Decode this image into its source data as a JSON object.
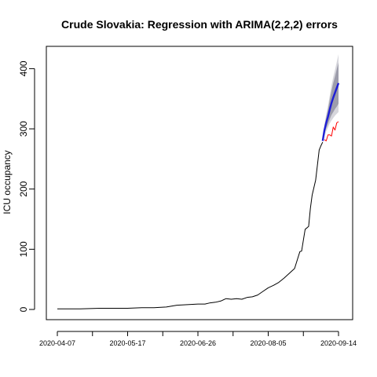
{
  "chart_data": {
    "type": "line",
    "title": "Crude Slovakia: Regression with ARIMA(2,2,2) errors",
    "xlabel": "",
    "ylabel": "ICU occupancy",
    "x_ticks": [
      "2020-04-07",
      "2020-05-17",
      "2020-06-26",
      "2020-08-05",
      "2020-09-14"
    ],
    "y_ticks": [
      0,
      100,
      200,
      300,
      400
    ],
    "xlim": [
      "2020-04-07",
      "2020-09-14"
    ],
    "ylim": [
      0,
      400
    ],
    "grid": false,
    "legend": "none",
    "series": [
      {
        "role": "observed",
        "color": "#000000",
        "points": [
          [
            "2020-04-07",
            1
          ],
          [
            "2020-04-20",
            1
          ],
          [
            "2020-05-01",
            2
          ],
          [
            "2020-05-10",
            2
          ],
          [
            "2020-05-17",
            2
          ],
          [
            "2020-05-25",
            3
          ],
          [
            "2020-06-01",
            3
          ],
          [
            "2020-06-08",
            4
          ],
          [
            "2020-06-14",
            7
          ],
          [
            "2020-06-20",
            8
          ],
          [
            "2020-06-26",
            9
          ],
          [
            "2020-06-30",
            9
          ],
          [
            "2020-07-03",
            11
          ],
          [
            "2020-07-06",
            12
          ],
          [
            "2020-07-09",
            14
          ],
          [
            "2020-07-12",
            18
          ],
          [
            "2020-07-15",
            17
          ],
          [
            "2020-07-18",
            18
          ],
          [
            "2020-07-21",
            17
          ],
          [
            "2020-07-24",
            20
          ],
          [
            "2020-07-27",
            21
          ],
          [
            "2020-07-30",
            24
          ],
          [
            "2020-08-02",
            30
          ],
          [
            "2020-08-05",
            36
          ],
          [
            "2020-08-08",
            40
          ],
          [
            "2020-08-11",
            45
          ],
          [
            "2020-08-14",
            52
          ],
          [
            "2020-08-17",
            60
          ],
          [
            "2020-08-20",
            68
          ],
          [
            "2020-08-23",
            96
          ],
          [
            "2020-08-24",
            97
          ],
          [
            "2020-08-26",
            133
          ],
          [
            "2020-08-28",
            138
          ],
          [
            "2020-08-29",
            168
          ],
          [
            "2020-08-30",
            190
          ],
          [
            "2020-09-01",
            215
          ],
          [
            "2020-09-02",
            240
          ],
          [
            "2020-09-03",
            265
          ],
          [
            "2020-09-04",
            272
          ],
          [
            "2020-09-05",
            278
          ]
        ]
      },
      {
        "role": "forecast",
        "color": "#1f1fd6",
        "points": [
          [
            "2020-09-05",
            280
          ],
          [
            "2020-09-06",
            298
          ],
          [
            "2020-09-07",
            310
          ],
          [
            "2020-09-08",
            320
          ],
          [
            "2020-09-09",
            332
          ],
          [
            "2020-09-10",
            343
          ],
          [
            "2020-09-11",
            352
          ],
          [
            "2020-09-12",
            360
          ],
          [
            "2020-09-13",
            368
          ],
          [
            "2020-09-14",
            376
          ]
        ],
        "interval_80": [
          [
            280,
            280
          ],
          [
            292,
            304
          ],
          [
            301,
            319
          ],
          [
            308,
            332
          ],
          [
            316,
            348
          ],
          [
            323,
            363
          ],
          [
            328,
            376
          ],
          [
            333,
            387
          ],
          [
            337,
            399
          ],
          [
            342,
            410
          ]
        ],
        "interval_95": [
          [
            280,
            280
          ],
          [
            288,
            308
          ],
          [
            296,
            324
          ],
          [
            302,
            338
          ],
          [
            309,
            355
          ],
          [
            314,
            372
          ],
          [
            318,
            386
          ],
          [
            322,
            398
          ],
          [
            325,
            411
          ],
          [
            328,
            424
          ]
        ],
        "band_colors": [
          "#d6d6dc",
          "#9d9dab"
        ]
      },
      {
        "role": "actual",
        "color": "#ff0000",
        "points": [
          [
            "2020-09-06",
            282
          ],
          [
            "2020-09-07",
            280
          ],
          [
            "2020-09-08",
            290
          ],
          [
            "2020-09-09",
            290
          ],
          [
            "2020-09-10",
            288
          ],
          [
            "2020-09-11",
            303
          ],
          [
            "2020-09-12",
            298
          ],
          [
            "2020-09-13",
            310
          ],
          [
            "2020-09-14",
            312
          ]
        ]
      }
    ]
  }
}
